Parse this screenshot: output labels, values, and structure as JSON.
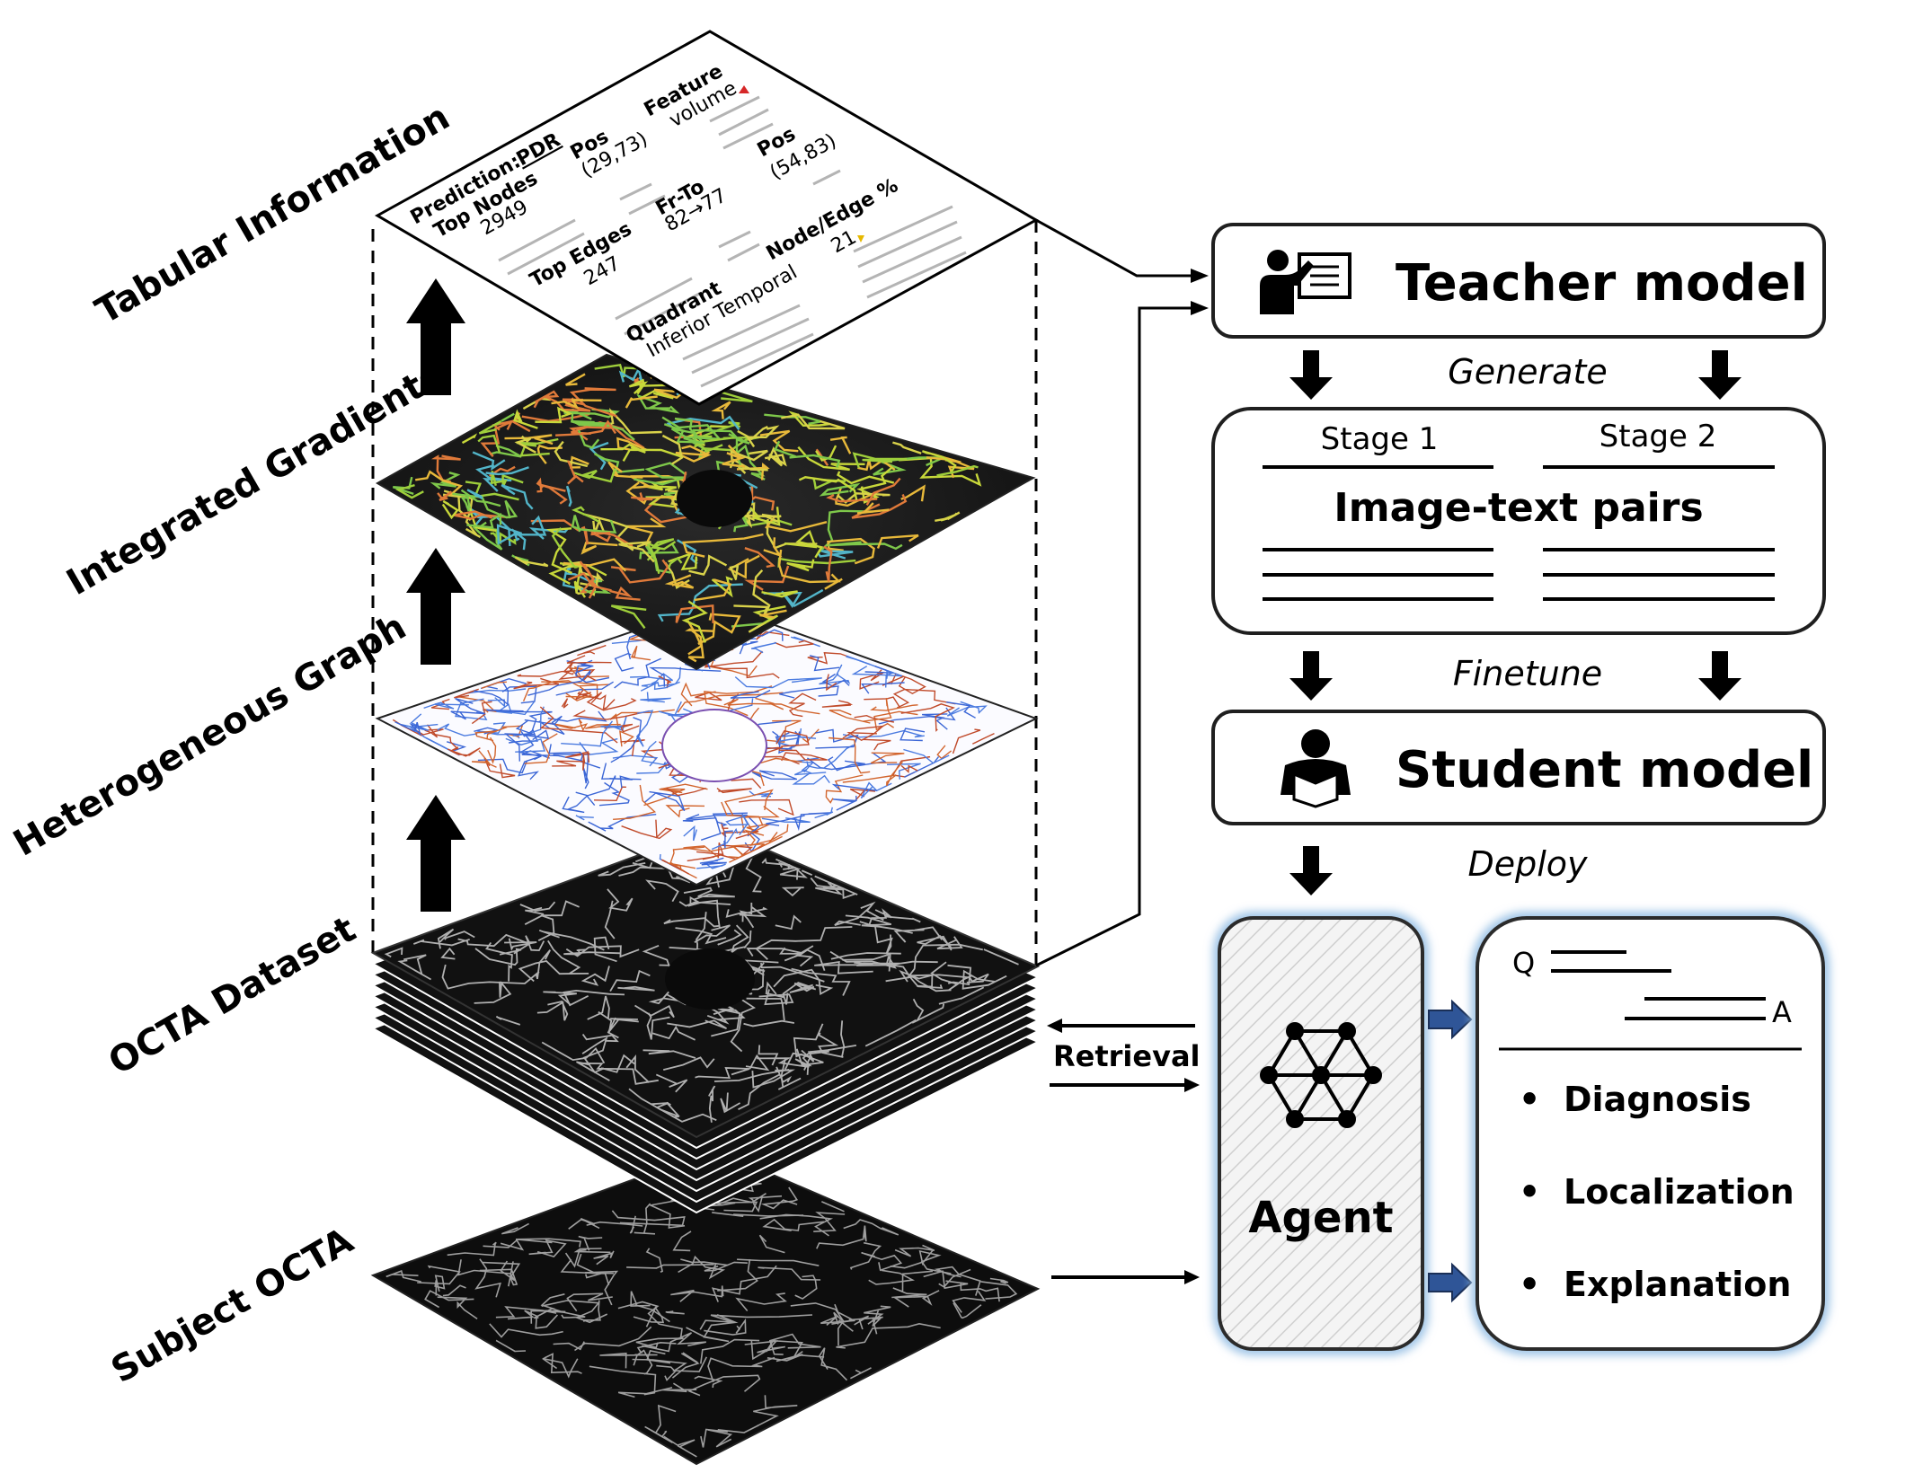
{
  "layers": {
    "tabular": "Tabular Information",
    "integrated": "Integrated Gradients",
    "heterogeneous": "Heterogeneous Graph",
    "dataset": "OCTA Dataset",
    "subject": "Subject OCTA"
  },
  "tabular_card": {
    "prediction_label": "Prediction:",
    "prediction_value": "PDR",
    "top_nodes_label": "Top Nodes",
    "top_nodes_value": "2949",
    "pos1_label": "Pos",
    "pos1_value": "(29,73)",
    "feature_label": "Feature",
    "feature_value": "volume",
    "top_edges_label": "Top Edges",
    "top_edges_value": "247",
    "frto_label": "Fr-To",
    "frto_value": "82→77",
    "pos2_label": "Pos",
    "pos2_value": "(54,83)",
    "nodeedge_label": "Node/Edge %",
    "nodeedge_value": "21",
    "quadrant_label": "Quadrant",
    "quadrant_value": "Inferior Temporal"
  },
  "pipeline": {
    "teacher": "Teacher model",
    "generate": "Generate",
    "stage1": "Stage 1",
    "stage2": "Stage 2",
    "pairs": "Image-text pairs",
    "finetune": "Finetune",
    "student": "Student model",
    "deploy": "Deploy",
    "agent": "Agent",
    "retrieval": "Retrieval"
  },
  "output": {
    "q": "Q",
    "a": "A",
    "bullets": [
      "Diagnosis",
      "Localization",
      "Explanation"
    ]
  },
  "colors": {
    "prediction": "#d62728",
    "box_border": "#1f1f1f",
    "agent_glow": "#9cc3e6",
    "small_arrow": "#2f5597"
  }
}
